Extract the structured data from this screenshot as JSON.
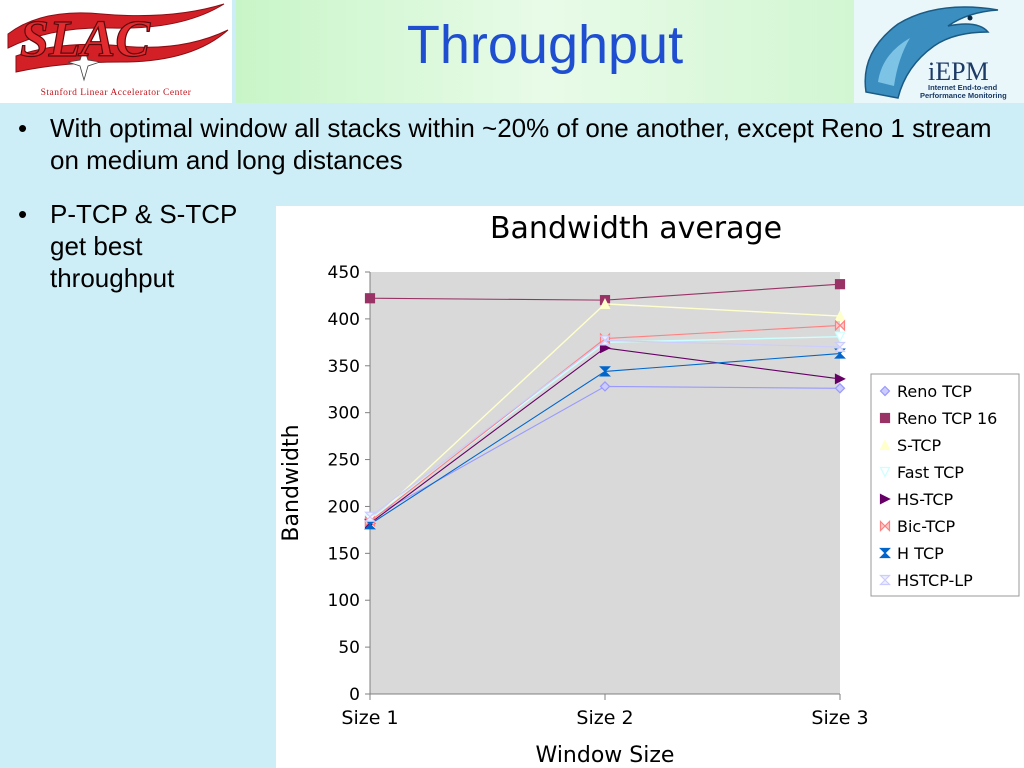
{
  "slide": {
    "title": "Throughput",
    "logo_left_text": "SLAC",
    "logo_left_subtitle": "Stanford Linear Accelerator Center",
    "logo_right_text": "iEPM",
    "logo_right_subtitle_line1": "Internet End-to-end",
    "logo_right_subtitle_line2": "Performance Monitoring",
    "bullets": [
      {
        "marker": "•",
        "text": "With optimal window all stacks within ~20% of one another, except Reno 1 stream on medium and long distances"
      },
      {
        "marker": "•",
        "text": "P-TCP & S-TCP get best throughput"
      }
    ]
  },
  "colors": {
    "title": "#1f4fd0",
    "plot_background": "#d9d9d9",
    "slide_background": "#cdeef7"
  },
  "chart_data": {
    "type": "line",
    "title": "Bandwidth average",
    "xlabel": "Window Size",
    "ylabel": "Bandwidth",
    "categories": [
      "Size 1",
      "Size 2",
      "Size 3"
    ],
    "ylim": [
      0,
      450
    ],
    "yticks": [
      0,
      50,
      100,
      150,
      200,
      250,
      300,
      350,
      400,
      450
    ],
    "grid": false,
    "legend_position": "right",
    "series": [
      {
        "name": "Reno TCP",
        "values": [
          187,
          328,
          326
        ],
        "color": "#9999ff",
        "marker": "diamond"
      },
      {
        "name": "Reno TCP 16",
        "values": [
          422,
          420,
          437
        ],
        "color": "#993366",
        "marker": "square"
      },
      {
        "name": "S-TCP",
        "values": [
          183,
          416,
          403
        ],
        "color": "#ffffcc",
        "marker": "triangle-up"
      },
      {
        "name": "Fast TCP",
        "values": [
          186,
          375,
          381
        ],
        "color": "#ccffff",
        "marker": "triangle-down"
      },
      {
        "name": "HS-TCP",
        "values": [
          182,
          369,
          336
        ],
        "color": "#660066",
        "marker": "triangle-right"
      },
      {
        "name": "Bic-TCP",
        "values": [
          184,
          379,
          393
        ],
        "color": "#ff8080",
        "marker": "bowtie-x"
      },
      {
        "name": "H TCP",
        "values": [
          181,
          344,
          363
        ],
        "color": "#0066cc",
        "marker": "hourglass"
      },
      {
        "name": "HSTCP-LP",
        "values": [
          189,
          377,
          370
        ],
        "color": "#ccccff",
        "marker": "hourglass-x"
      }
    ]
  }
}
